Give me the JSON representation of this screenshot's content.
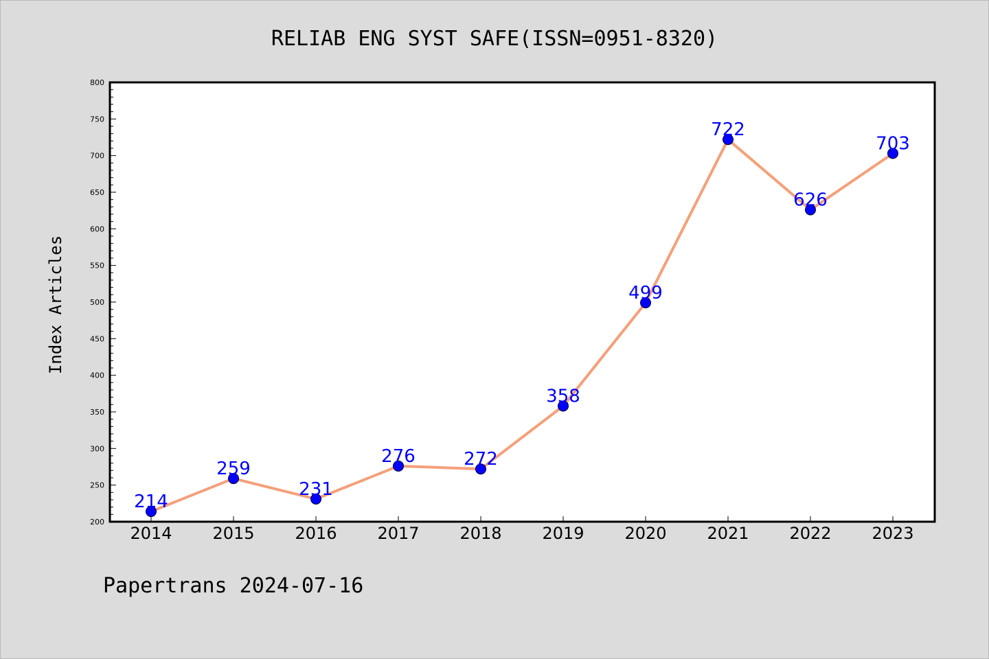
{
  "chart_data": {
    "type": "line",
    "title": "RELIAB ENG SYST SAFE(ISSN=0951-8320)",
    "xlabel": "",
    "ylabel": "Index Articles",
    "categories": [
      "2014",
      "2015",
      "2016",
      "2017",
      "2018",
      "2019",
      "2020",
      "2021",
      "2022",
      "2023"
    ],
    "values": [
      214,
      259,
      231,
      276,
      272,
      358,
      499,
      722,
      626,
      703
    ],
    "ylim": [
      200,
      800
    ],
    "yticks": [
      200,
      250,
      300,
      350,
      400,
      450,
      500,
      550,
      600,
      650,
      700,
      750,
      800
    ],
    "grid": false,
    "data_labels": true
  },
  "footer": "Papertrans 2024-07-16",
  "colors": {
    "background": "#dcdcdc",
    "plot_background": "#ffffff",
    "line": "#f4a07a",
    "marker": "#0000ff",
    "data_label": "#0000ff"
  }
}
